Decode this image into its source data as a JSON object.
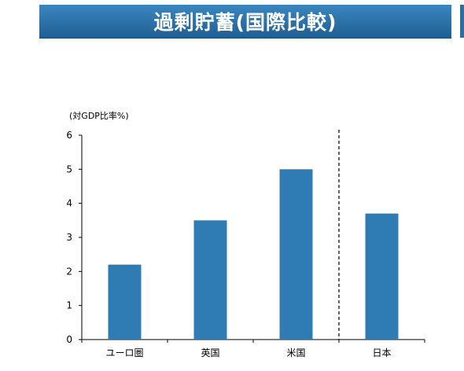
{
  "header": {
    "title": "過剰貯蓄(国際比較)"
  },
  "chart_data": {
    "type": "bar",
    "ylabel": "(対GDP比率%)",
    "categories": [
      "ユーロ圏",
      "英国",
      "米国",
      "日本"
    ],
    "values": [
      2.2,
      3.5,
      5.0,
      3.7
    ],
    "ylim": [
      0,
      6
    ],
    "yticks": [
      0,
      1,
      2,
      3,
      4,
      5,
      6
    ],
    "grid": false,
    "bar_color": "#2f7cb5",
    "divider": {
      "between": [
        "米国",
        "日本"
      ],
      "style": "dashed"
    }
  }
}
